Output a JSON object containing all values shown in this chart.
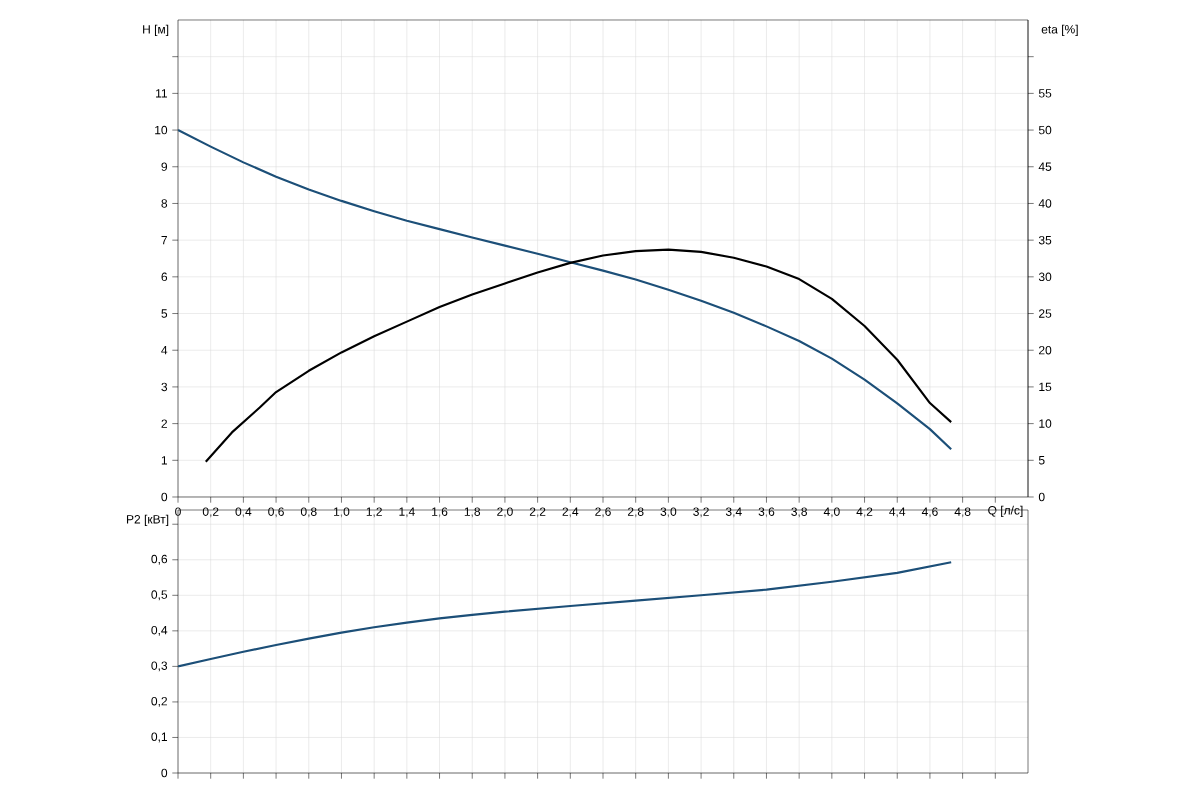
{
  "chart_data": [
    {
      "type": "line",
      "xlabel": "Q [л/с]",
      "ylabel": "H [м]",
      "y2label": "eta [%]",
      "grid": true,
      "xlim": [
        0,
        5.2
      ],
      "xticks": [
        0,
        {
          "value": 0.2,
          "label": "0,2"
        },
        {
          "value": 0.4,
          "label": "0,4"
        },
        {
          "value": 0.6,
          "label": "0,6"
        },
        {
          "value": 0.8,
          "label": "0,8"
        },
        {
          "value": 1.0,
          "label": "1,0"
        },
        {
          "value": 1.2,
          "label": "1,2"
        },
        {
          "value": 1.4,
          "label": "1,4"
        },
        {
          "value": 1.6,
          "label": "1,6"
        },
        {
          "value": 1.8,
          "label": "1,8"
        },
        {
          "value": 2.0,
          "label": "2,0"
        },
        {
          "value": 2.2,
          "label": "2,2"
        },
        {
          "value": 2.4,
          "label": "2,4"
        },
        {
          "value": 2.6,
          "label": "2,6"
        },
        {
          "value": 2.8,
          "label": "2,8"
        },
        {
          "value": 3.0,
          "label": "3,0"
        },
        {
          "value": 3.2,
          "label": "3,2"
        },
        {
          "value": 3.4,
          "label": "3,4"
        },
        {
          "value": 3.6,
          "label": "3,6"
        },
        {
          "value": 3.8,
          "label": "3,8"
        },
        {
          "value": 4.0,
          "label": "4,0"
        },
        {
          "value": 4.2,
          "label": "4,2"
        },
        {
          "value": 4.4,
          "label": "4,4"
        },
        {
          "value": 4.6,
          "label": "4,6"
        },
        {
          "value": 4.8,
          "label": "4,8"
        },
        {
          "value": 5.0,
          "label": null
        }
      ],
      "ylim": [
        0,
        13
      ],
      "yticks": [
        0,
        1,
        2,
        3,
        4,
        5,
        6,
        7,
        8,
        9,
        10,
        11,
        {
          "value": 12,
          "label": null
        }
      ],
      "y2lim": [
        0,
        65
      ],
      "y2ticks": [
        0,
        5,
        10,
        15,
        20,
        25,
        30,
        35,
        40,
        45,
        50,
        55,
        {
          "value": 60,
          "label": null
        }
      ],
      "series": [
        {
          "color": "#1c4f78",
          "x": [
            0,
            0.2,
            0.4,
            0.6,
            0.8,
            1.0,
            1.2,
            1.4,
            1.6,
            1.8,
            2.0,
            2.2,
            2.4,
            2.6,
            2.8,
            3.0,
            3.2,
            3.4,
            3.6,
            3.8,
            4.0,
            4.2,
            4.4,
            4.6,
            4.73
          ],
          "values": [
            10.0,
            9.55,
            9.12,
            8.73,
            8.38,
            8.07,
            7.79,
            7.53,
            7.3,
            7.07,
            6.85,
            6.63,
            6.4,
            6.17,
            5.93,
            5.65,
            5.35,
            5.02,
            4.65,
            4.25,
            3.77,
            3.2,
            2.55,
            1.85,
            1.3
          ]
        },
        {
          "color": "#000000",
          "axis": "y2",
          "x": [
            0.17,
            0.33,
            0.5,
            0.6,
            0.8,
            1.0,
            1.2,
            1.4,
            1.6,
            1.8,
            2.0,
            2.2,
            2.4,
            2.6,
            2.8,
            3.0,
            3.2,
            3.4,
            3.6,
            3.8,
            4.0,
            4.2,
            4.4,
            4.6,
            4.73
          ],
          "values": [
            4.8,
            8.8,
            12.2,
            14.3,
            17.2,
            19.7,
            21.9,
            23.9,
            25.9,
            27.6,
            29.1,
            30.6,
            31.9,
            32.9,
            33.5,
            33.7,
            33.4,
            32.6,
            31.4,
            29.7,
            27.0,
            23.3,
            18.7,
            12.8,
            10.2
          ]
        }
      ]
    },
    {
      "type": "line",
      "ylabel": "P2 [кВт]",
      "grid": true,
      "tick_labels": "y",
      "xlim": [
        0,
        5.2
      ],
      "xticks": [
        0,
        0.2,
        0.4,
        0.6,
        0.8,
        1.0,
        1.2,
        1.4,
        1.6,
        1.8,
        2.0,
        2.2,
        2.4,
        2.6,
        2.8,
        3.0,
        3.2,
        3.4,
        3.6,
        3.8,
        4.0,
        4.2,
        4.4,
        4.6,
        4.8,
        5.0
      ],
      "ylim": [
        0,
        0.74
      ],
      "yticks": [
        0,
        {
          "value": 0.1,
          "label": "0,1"
        },
        {
          "value": 0.2,
          "label": "0,2"
        },
        {
          "value": 0.3,
          "label": "0,3"
        },
        {
          "value": 0.4,
          "label": "0,4"
        },
        {
          "value": 0.5,
          "label": "0,5"
        },
        {
          "value": 0.6,
          "label": "0,6"
        },
        {
          "value": 0.7,
          "label": null
        }
      ],
      "series": [
        {
          "color": "#1c4f78",
          "x": [
            0,
            0.2,
            0.4,
            0.6,
            0.8,
            1.0,
            1.2,
            1.4,
            1.6,
            1.8,
            2.0,
            2.4,
            2.8,
            3.2,
            3.6,
            4.0,
            4.4,
            4.73
          ],
          "values": [
            0.3,
            0.321,
            0.341,
            0.36,
            0.378,
            0.395,
            0.41,
            0.423,
            0.435,
            0.445,
            0.454,
            0.47,
            0.485,
            0.5,
            0.516,
            0.538,
            0.563,
            0.593
          ]
        }
      ]
    }
  ]
}
